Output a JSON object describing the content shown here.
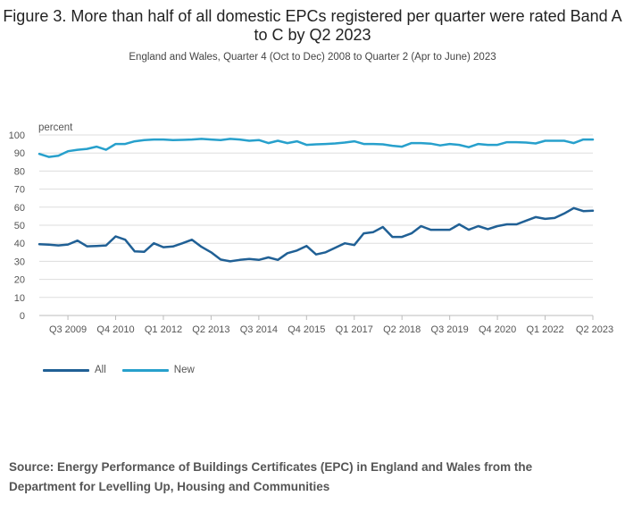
{
  "title": "Figure 3. More than half of all domestic EPCs registered per quarter were rated Band A to C by Q2 2023",
  "subtitle": "England and Wales, Quarter 4 (Oct to Dec) 2008 to Quarter 2 (Apr to June) 2023",
  "source": "Source: Energy Performance of Buildings Certificates (EPC) in England and Wales from the Department for Levelling Up, Housing and Communities",
  "chart_data": {
    "type": "line",
    "ylabel": "percent",
    "ylim": [
      0,
      100
    ],
    "yticks": [
      0,
      10,
      20,
      30,
      40,
      50,
      60,
      70,
      80,
      90,
      100
    ],
    "xtick_labels": [
      "Q3 2009",
      "Q4 2010",
      "Q1 2012",
      "Q2 2013",
      "Q3 2014",
      "Q4 2015",
      "Q1 2017",
      "Q2 2018",
      "Q3 2019",
      "Q4 2020",
      "Q1 2022",
      "Q2 2023"
    ],
    "xtick_indices": [
      3,
      8,
      13,
      18,
      23,
      28,
      33,
      38,
      43,
      48,
      53,
      58
    ],
    "grid": true,
    "legend_position": "bottom-left",
    "series": [
      {
        "name": "All",
        "color": "#206095",
        "values": [
          39.5,
          39.2,
          38.8,
          39.3,
          41.5,
          38.3,
          38.5,
          38.8,
          43.8,
          42.0,
          35.5,
          35.3,
          40.0,
          37.8,
          38.2,
          40.0,
          42.0,
          38.0,
          35.0,
          31.0,
          30.0,
          30.8,
          31.3,
          30.8,
          32.2,
          30.8,
          34.5,
          36.0,
          38.5,
          33.8,
          35.0,
          37.5,
          40.0,
          39.0,
          45.5,
          46.2,
          49.0,
          43.5,
          43.5,
          45.5,
          49.5,
          47.5,
          47.5,
          47.5,
          50.5,
          47.5,
          49.5,
          47.8,
          49.5,
          50.5,
          50.5,
          52.5,
          54.5,
          53.5,
          54.0,
          56.5,
          59.5,
          57.8,
          58.0
        ]
      },
      {
        "name": "New",
        "color": "#27a0cc",
        "values": [
          89.5,
          87.8,
          88.5,
          91.0,
          91.8,
          92.3,
          93.5,
          91.8,
          95.0,
          95.0,
          96.5,
          97.2,
          97.5,
          97.5,
          97.2,
          97.3,
          97.5,
          97.8,
          97.5,
          97.2,
          97.8,
          97.5,
          96.8,
          97.2,
          95.5,
          96.8,
          95.5,
          96.5,
          94.5,
          94.8,
          95.0,
          95.3,
          95.8,
          96.5,
          95.0,
          95.0,
          94.8,
          94.0,
          93.5,
          95.5,
          95.5,
          95.2,
          94.2,
          95.0,
          94.5,
          93.2,
          95.0,
          94.5,
          94.5,
          96.0,
          96.0,
          95.8,
          95.3,
          96.8,
          96.8,
          96.8,
          95.5,
          97.5,
          97.5
        ]
      }
    ]
  }
}
